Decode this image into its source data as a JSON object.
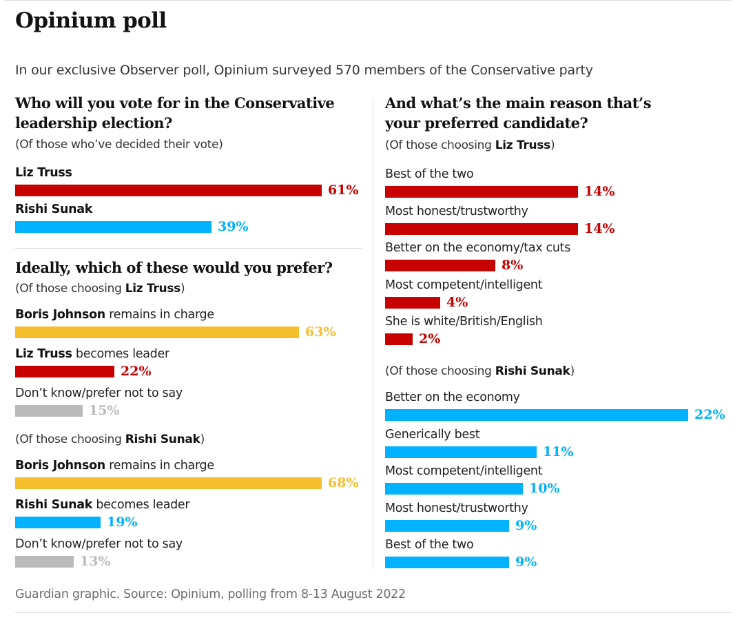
{
  "title": "Opinium poll",
  "subtitle": "In our exclusive Observer poll, Opinium surveyed 570 members of the Conservative party",
  "footer": "Guardian graphic. Source: Opinium, polling from 8-13 August 2022",
  "colors": {
    "truss": "#c70000",
    "sunak": "#00b2ff",
    "boris": "#f5be2c",
    "dont_know": "#bababa"
  },
  "chart_data": [
    {
      "type": "bar",
      "title": "Who will you vote for in the Conservative leadership election?",
      "note": {
        "pre": "(Of those who’ve decided their vote)",
        "bold": "",
        "post": ""
      },
      "categories": [
        {
          "bold": "Liz Truss",
          "rest": ""
        },
        {
          "bold": "Rishi Sunak",
          "rest": ""
        }
      ],
      "values": [
        61,
        39
      ],
      "value_labels": [
        "61%",
        "39%"
      ],
      "colors": [
        "#c70000",
        "#00b2ff"
      ],
      "xlim": [
        0,
        61
      ]
    },
    {
      "type": "bar",
      "title": "Ideally, which of these would you prefer?",
      "groups": [
        {
          "note": {
            "pre": "(Of those choosing ",
            "bold": "Liz Truss",
            "post": ")"
          },
          "categories": [
            {
              "bold": "Boris Johnson",
              "rest": " remains in charge"
            },
            {
              "bold": "Liz Truss",
              "rest": " becomes leader"
            },
            {
              "bold": "",
              "rest": "Don’t know/prefer not to say"
            }
          ],
          "values": [
            63,
            22,
            15
          ],
          "value_labels": [
            "63%",
            "22%",
            "15%"
          ],
          "colors": [
            "#f5be2c",
            "#c70000",
            "#bababa"
          ]
        },
        {
          "note": {
            "pre": "(Of those choosing ",
            "bold": "Rishi Sunak",
            "post": ")"
          },
          "categories": [
            {
              "bold": "Boris Johnson",
              "rest": " remains in charge"
            },
            {
              "bold": "Rishi Sunak",
              "rest": " becomes leader"
            },
            {
              "bold": "",
              "rest": "Don’t know/prefer not to say"
            }
          ],
          "values": [
            68,
            19,
            13
          ],
          "value_labels": [
            "68%",
            "19%",
            "13%"
          ],
          "colors": [
            "#f5be2c",
            "#00b2ff",
            "#bababa"
          ]
        }
      ],
      "xlim": [
        0,
        68
      ]
    },
    {
      "type": "bar",
      "title": "And what’s the main reason that’s your preferred candidate?",
      "groups": [
        {
          "note": {
            "pre": "(Of those choosing ",
            "bold": "Liz Truss",
            "post": ")"
          },
          "categories": [
            "Best of the two",
            "Most honest/trustworthy",
            "Better on the economy/tax cuts",
            "Most competent/intelligent",
            "She is white/British/English"
          ],
          "values": [
            14,
            14,
            8,
            4,
            2
          ],
          "value_labels": [
            "14%",
            "14%",
            "8%",
            "4%",
            "2%"
          ],
          "color": "#c70000"
        },
        {
          "note": {
            "pre": "(Of those choosing ",
            "bold": "Rishi Sunak",
            "post": ")"
          },
          "categories": [
            "Better on the economy",
            "Generically best",
            "Most competent/intelligent",
            "Most honest/trustworthy",
            "Best of the two"
          ],
          "values": [
            22,
            11,
            10,
            9,
            9
          ],
          "value_labels": [
            "22%",
            "11%",
            "10%",
            "9%",
            "9%"
          ],
          "color": "#00b2ff"
        }
      ],
      "xlim": [
        0,
        22
      ]
    }
  ]
}
